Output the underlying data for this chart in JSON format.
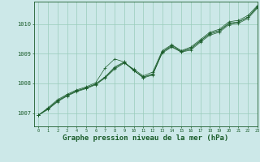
{
  "bg_color": "#cce8e8",
  "grid_color": "#99ccbb",
  "line_color": "#1a5c2a",
  "xlabel": "Graphe pression niveau de la mer (hPa)",
  "xlabel_fontsize": 6.5,
  "ylabel_ticks": [
    1007,
    1008,
    1009,
    1010
  ],
  "xlim": [
    -0.5,
    23
  ],
  "ylim": [
    1006.55,
    1010.75
  ],
  "series": [
    [
      1006.93,
      1007.15,
      1007.42,
      1007.6,
      1007.75,
      1007.85,
      1007.98,
      1008.22,
      1008.55,
      1008.72,
      1008.42,
      1008.22,
      1008.3,
      1009.02,
      1009.22,
      1009.05,
      1009.12,
      1009.38,
      1009.62,
      1009.72,
      1009.97,
      1010.02,
      1010.18,
      1010.53
    ],
    [
      1006.93,
      1007.18,
      1007.45,
      1007.63,
      1007.78,
      1007.88,
      1008.02,
      1008.52,
      1008.82,
      1008.72,
      1008.45,
      1008.18,
      1008.28,
      1009.05,
      1009.28,
      1009.08,
      1009.18,
      1009.43,
      1009.68,
      1009.78,
      1010.02,
      1010.07,
      1010.23,
      1010.58
    ],
    [
      1006.93,
      1007.12,
      1007.38,
      1007.57,
      1007.72,
      1007.82,
      1007.95,
      1008.18,
      1008.48,
      1008.68,
      1008.48,
      1008.25,
      1008.38,
      1009.1,
      1009.3,
      1009.1,
      1009.22,
      1009.47,
      1009.72,
      1009.82,
      1010.07,
      1010.12,
      1010.28,
      1010.62
    ],
    [
      1006.93,
      1007.14,
      1007.4,
      1007.59,
      1007.74,
      1007.84,
      1007.97,
      1008.2,
      1008.52,
      1008.7,
      1008.44,
      1008.2,
      1008.32,
      1009.06,
      1009.24,
      1009.06,
      1009.16,
      1009.42,
      1009.66,
      1009.76,
      1010.01,
      1010.06,
      1010.22,
      1010.57
    ]
  ],
  "figsize": [
    3.2,
    2.0
  ],
  "dpi": 100
}
